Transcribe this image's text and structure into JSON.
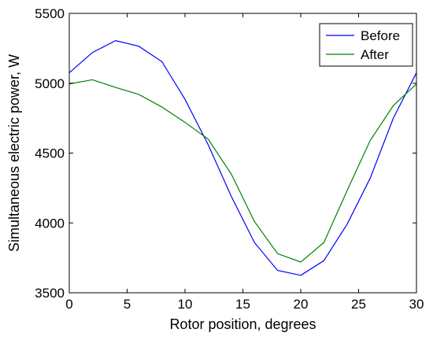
{
  "chart_data": {
    "type": "line",
    "xlabel": "Rotor position, degrees",
    "ylabel": "Simultaneous electric power, W",
    "xlim": [
      0,
      30
    ],
    "ylim": [
      3500,
      5500
    ],
    "xticks": [
      0,
      5,
      10,
      15,
      20,
      25,
      30
    ],
    "yticks": [
      3500,
      4000,
      4500,
      5000,
      5500
    ],
    "x": [
      0,
      2,
      4,
      6,
      8,
      10,
      12,
      14,
      16,
      18,
      20,
      22,
      24,
      26,
      28,
      30
    ],
    "series": [
      {
        "name": "Before",
        "color": "#0000ff",
        "values": [
          5075,
          5220,
          5305,
          5265,
          5155,
          4885,
          4560,
          4190,
          3860,
          3660,
          3625,
          3730,
          3990,
          4320,
          4750,
          5075
        ]
      },
      {
        "name": "After",
        "color": "#008000",
        "values": [
          4995,
          5025,
          4970,
          4920,
          4830,
          4720,
          4600,
          4350,
          4010,
          3780,
          3720,
          3860,
          4230,
          4590,
          4840,
          4995
        ]
      }
    ],
    "grid": false,
    "legend_position": "top-right"
  }
}
